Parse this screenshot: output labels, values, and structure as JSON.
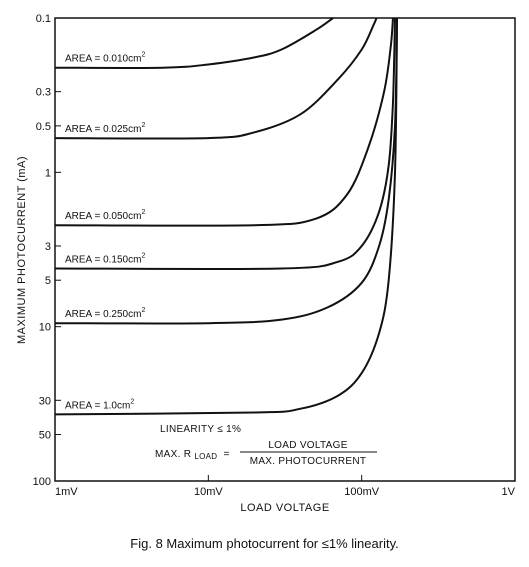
{
  "chart_data": {
    "type": "line",
    "caption": "Fig. 8 Maximum photocurrent for ≤1% linearity.",
    "xlabel": "LOAD VOLTAGE",
    "ylabel": "MAXIMUM PHOTOCURRENT (mA)",
    "x_scale": "log",
    "y_scale": "log",
    "y_inverted": true,
    "xlim": [
      0.001,
      1
    ],
    "ylim": [
      0.1,
      100
    ],
    "x_ticks": [
      {
        "value": 0.001,
        "label": "1mV"
      },
      {
        "value": 0.01,
        "label": "10mV"
      },
      {
        "value": 0.1,
        "label": "100mV"
      },
      {
        "value": 1,
        "label": "1V"
      }
    ],
    "y_ticks": [
      {
        "value": 0.1,
        "label": "0.1"
      },
      {
        "value": 0.3,
        "label": "0.3"
      },
      {
        "value": 0.5,
        "label": "0.5"
      },
      {
        "value": 1,
        "label": "1"
      },
      {
        "value": 3,
        "label": "3"
      },
      {
        "value": 5,
        "label": "5"
      },
      {
        "value": 10,
        "label": "10"
      },
      {
        "value": 30,
        "label": "30"
      },
      {
        "value": 50,
        "label": "50"
      },
      {
        "value": 100,
        "label": "100"
      }
    ],
    "series": [
      {
        "label_text": "AREA = 0.010cm",
        "label_sup": "2",
        "points": [
          [
            0.001,
            0.21
          ],
          [
            0.005,
            0.21
          ],
          [
            0.01,
            0.2
          ],
          [
            0.02,
            0.18
          ],
          [
            0.03,
            0.16
          ],
          [
            0.05,
            0.12
          ],
          [
            0.065,
            0.1
          ]
        ]
      },
      {
        "label_text": "AREA = 0.025cm",
        "label_sup": "2",
        "points": [
          [
            0.001,
            0.6
          ],
          [
            0.01,
            0.6
          ],
          [
            0.02,
            0.55
          ],
          [
            0.04,
            0.42
          ],
          [
            0.07,
            0.25
          ],
          [
            0.1,
            0.16
          ],
          [
            0.12,
            0.11
          ],
          [
            0.125,
            0.1
          ]
        ]
      },
      {
        "label_text": "AREA = 0.050cm",
        "label_sup": "2",
        "points": [
          [
            0.001,
            2.2
          ],
          [
            0.02,
            2.2
          ],
          [
            0.05,
            2.0
          ],
          [
            0.08,
            1.4
          ],
          [
            0.11,
            0.7
          ],
          [
            0.14,
            0.3
          ],
          [
            0.155,
            0.15
          ],
          [
            0.16,
            0.1
          ]
        ]
      },
      {
        "label_text": "AREA = 0.150cm",
        "label_sup": "2",
        "points": [
          [
            0.001,
            4.2
          ],
          [
            0.03,
            4.2
          ],
          [
            0.07,
            3.8
          ],
          [
            0.1,
            3.0
          ],
          [
            0.13,
            1.8
          ],
          [
            0.15,
            0.9
          ],
          [
            0.16,
            0.35
          ],
          [
            0.165,
            0.1
          ]
        ]
      },
      {
        "label_text": "AREA = 0.250cm",
        "label_sup": "2",
        "points": [
          [
            0.001,
            9.5
          ],
          [
            0.01,
            9.5
          ],
          [
            0.03,
            9.0
          ],
          [
            0.06,
            7.5
          ],
          [
            0.1,
            5.2
          ],
          [
            0.13,
            3.0
          ],
          [
            0.15,
            1.5
          ],
          [
            0.165,
            0.5
          ],
          [
            0.17,
            0.1
          ]
        ]
      },
      {
        "label_text": "AREA = 1.0cm",
        "label_sup": "2",
        "points": [
          [
            0.001,
            37
          ],
          [
            0.02,
            36
          ],
          [
            0.04,
            34
          ],
          [
            0.07,
            28
          ],
          [
            0.1,
            20
          ],
          [
            0.13,
            11
          ],
          [
            0.15,
            5
          ],
          [
            0.165,
            1
          ],
          [
            0.17,
            0.1
          ]
        ]
      }
    ],
    "annotation": {
      "linearity": "LINEARITY ≤ 1%",
      "formula_prefix": "MAX. R",
      "formula_sub": "LOAD",
      "formula_eq": "=",
      "numerator": "LOAD VOLTAGE",
      "denominator": "MAX. PHOTOCURRENT"
    },
    "grid": false,
    "legend": "inline labels on curves"
  }
}
